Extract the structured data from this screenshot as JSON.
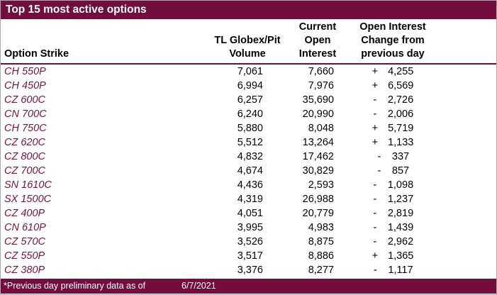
{
  "title": "Top 15 most active options",
  "columns": {
    "strike": "Option Strike",
    "volume": [
      "TL Globex/Pit",
      "Volume"
    ],
    "open_interest": [
      "Current",
      "Open",
      "Interest"
    ],
    "change": [
      "Open Interest",
      "Change from",
      "previous day"
    ]
  },
  "rows": [
    {
      "strike": "CH 550P",
      "volume": "7,061",
      "open_interest": "7,660",
      "change_sign": "+",
      "change_value": "4,255"
    },
    {
      "strike": "CH 450P",
      "volume": "6,994",
      "open_interest": "7,976",
      "change_sign": "+",
      "change_value": "6,569"
    },
    {
      "strike": "CZ 600C",
      "volume": "6,257",
      "open_interest": "35,690",
      "change_sign": "-",
      "change_value": "2,726"
    },
    {
      "strike": "CN 700C",
      "volume": "6,240",
      "open_interest": "20,990",
      "change_sign": "-",
      "change_value": "2,006"
    },
    {
      "strike": "CH 750C",
      "volume": "5,880",
      "open_interest": "8,048",
      "change_sign": "+",
      "change_value": "5,719"
    },
    {
      "strike": "CZ 620C",
      "volume": "5,512",
      "open_interest": "13,264",
      "change_sign": "+",
      "change_value": "1,133"
    },
    {
      "strike": "CZ 800C",
      "volume": "4,832",
      "open_interest": "17,462",
      "change_sign": "-",
      "change_value": "337"
    },
    {
      "strike": "CZ 700C",
      "volume": "4,674",
      "open_interest": "30,829",
      "change_sign": "-",
      "change_value": "857"
    },
    {
      "strike": "SN 1610C",
      "volume": "4,436",
      "open_interest": "2,593",
      "change_sign": "-",
      "change_value": "1,098"
    },
    {
      "strike": "SX 1500C",
      "volume": "4,319",
      "open_interest": "26,988",
      "change_sign": "-",
      "change_value": "1,237"
    },
    {
      "strike": "CZ 400P",
      "volume": "4,051",
      "open_interest": "20,779",
      "change_sign": "-",
      "change_value": "2,819"
    },
    {
      "strike": "CN 610P",
      "volume": "3,995",
      "open_interest": "4,983",
      "change_sign": "-",
      "change_value": "1,439"
    },
    {
      "strike": "CZ 570C",
      "volume": "3,526",
      "open_interest": "8,875",
      "change_sign": "-",
      "change_value": "2,962"
    },
    {
      "strike": "CZ 550P",
      "volume": "3,517",
      "open_interest": "8,886",
      "change_sign": "+",
      "change_value": "1,365"
    },
    {
      "strike": "CZ 380P",
      "volume": "3,376",
      "open_interest": "8,277",
      "change_sign": "-",
      "change_value": "1,117"
    }
  ],
  "footer": {
    "note": "*Previous day preliminary data as of",
    "date": "6/7/2021"
  },
  "colors": {
    "maroon_bar": "#730d3e",
    "strike_text": "#7a1240",
    "body_text": "#000000",
    "bar_text": "#ffffff"
  }
}
